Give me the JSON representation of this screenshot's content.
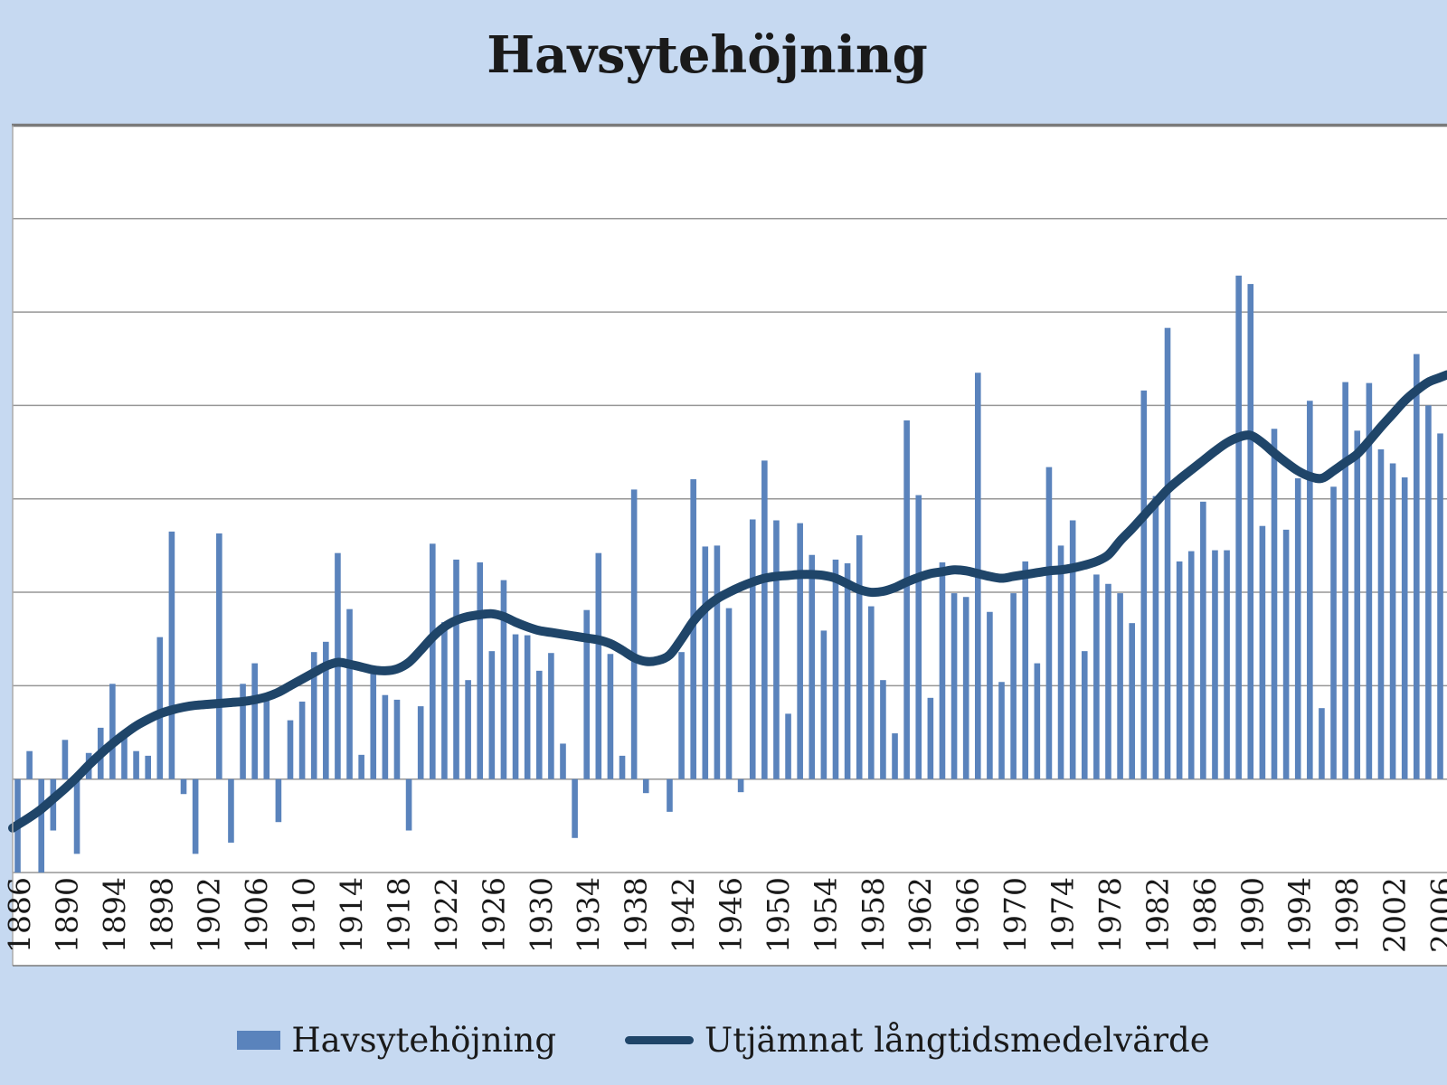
{
  "title": "Havsytehöjning",
  "colors": {
    "background": "#C6D9F1",
    "plot_background": "#FFFFFF",
    "bar": "#5A83BC",
    "line": "#1F4569",
    "gridline": "#969696",
    "frame_top_border": "#7A7A7A",
    "frame_side_border": "#ABABAB",
    "text": "#1A1A1A"
  },
  "legend": {
    "bar_label": "Havsytehöjning",
    "line_label": "Utjämnat långtidsmedelvärde"
  },
  "axis": {
    "x_first_label": "1886",
    "x_last_label": "2006",
    "x_label_interval": 4,
    "y_axis_labels_visible": false,
    "ylim": [
      -1,
      7
    ],
    "gridline_step": 1,
    "grid": "horizontal lines on"
  },
  "chart_data": {
    "type": "bar+line",
    "title": "Havsytehöjning",
    "xlabel": "",
    "ylabel": "",
    "value_units": "gridline units (y-axis tick labels are cropped out of the image; 1 unit = one horizontal gridline spacing, zero line = baseline of bars)",
    "x": [
      1886,
      1887,
      1888,
      1889,
      1890,
      1891,
      1892,
      1893,
      1894,
      1895,
      1896,
      1897,
      1898,
      1899,
      1900,
      1901,
      1902,
      1903,
      1904,
      1905,
      1906,
      1907,
      1908,
      1909,
      1910,
      1911,
      1912,
      1913,
      1914,
      1915,
      1916,
      1917,
      1918,
      1919,
      1920,
      1921,
      1922,
      1923,
      1924,
      1925,
      1926,
      1927,
      1928,
      1929,
      1930,
      1931,
      1932,
      1933,
      1934,
      1935,
      1936,
      1937,
      1938,
      1939,
      1940,
      1941,
      1942,
      1943,
      1944,
      1945,
      1946,
      1947,
      1948,
      1949,
      1950,
      1951,
      1952,
      1953,
      1954,
      1955,
      1956,
      1957,
      1958,
      1959,
      1960,
      1961,
      1962,
      1963,
      1964,
      1965,
      1966,
      1967,
      1968,
      1969,
      1970,
      1971,
      1972,
      1973,
      1974,
      1975,
      1976,
      1977,
      1978,
      1979,
      1980,
      1981,
      1982,
      1983,
      1984,
      1985,
      1986,
      1987,
      1988,
      1989,
      1990,
      1991,
      1992,
      1993,
      1994,
      1995,
      1996,
      1997,
      1998,
      1999,
      2000,
      2001,
      2002,
      2003,
      2004,
      2005,
      2006
    ],
    "series": [
      {
        "name": "Havsytehöjning",
        "type": "bar",
        "values": [
          -1.0,
          0.3,
          -1.0,
          -0.55,
          0.42,
          -0.8,
          0.28,
          0.55,
          1.02,
          0.48,
          0.3,
          0.25,
          1.52,
          2.65,
          -0.16,
          -0.8,
          0,
          2.63,
          -0.68,
          1.02,
          1.24,
          0.84,
          -0.46,
          0.63,
          0.83,
          1.36,
          1.47,
          2.42,
          1.82,
          0.26,
          1.13,
          0.9,
          0.85,
          -0.55,
          0.78,
          2.52,
          1.68,
          2.35,
          1.06,
          2.32,
          1.37,
          2.13,
          1.55,
          1.54,
          1.16,
          1.35,
          0.38,
          -0.63,
          1.81,
          2.42,
          1.34,
          0.25,
          3.1,
          -0.15,
          0,
          -0.35,
          1.36,
          3.21,
          2.49,
          2.5,
          1.83,
          -0.14,
          2.78,
          3.41,
          2.77,
          0.7,
          2.74,
          2.4,
          1.59,
          2.35,
          2.31,
          2.61,
          1.85,
          1.06,
          0.49,
          3.84,
          3.04,
          0.87,
          2.32,
          1.99,
          1.95,
          4.35,
          1.79,
          1.04,
          1.99,
          2.33,
          1.24,
          3.34,
          2.5,
          2.77,
          1.37,
          2.19,
          2.09,
          1.99,
          1.67,
          4.16,
          3.03,
          4.83,
          2.33,
          2.44,
          2.97,
          2.45,
          2.45,
          5.39,
          5.3,
          2.71,
          3.75,
          2.67,
          3.22,
          4.05,
          0.76,
          3.13,
          4.25,
          3.73,
          4.24,
          3.53,
          3.38,
          3.23,
          4.55,
          4.0,
          3.7
        ]
      },
      {
        "name": "Utjämnat långtidsmedelvärde",
        "type": "line",
        "values": [
          -0.49,
          -0.41,
          -0.32,
          -0.21,
          -0.1,
          0.02,
          0.15,
          0.27,
          0.38,
          0.48,
          0.57,
          0.64,
          0.7,
          0.74,
          0.77,
          0.79,
          0.8,
          0.81,
          0.82,
          0.83,
          0.85,
          0.88,
          0.93,
          1.0,
          1.07,
          1.14,
          1.21,
          1.25,
          1.23,
          1.2,
          1.17,
          1.16,
          1.18,
          1.25,
          1.38,
          1.52,
          1.63,
          1.7,
          1.74,
          1.76,
          1.77,
          1.74,
          1.68,
          1.63,
          1.59,
          1.57,
          1.55,
          1.53,
          1.51,
          1.49,
          1.45,
          1.38,
          1.3,
          1.26,
          1.27,
          1.33,
          1.5,
          1.69,
          1.83,
          1.93,
          2.0,
          2.06,
          2.11,
          2.15,
          2.17,
          2.18,
          2.19,
          2.19,
          2.18,
          2.15,
          2.09,
          2.03,
          2.0,
          2.01,
          2.05,
          2.11,
          2.16,
          2.2,
          2.22,
          2.24,
          2.23,
          2.2,
          2.17,
          2.15,
          2.17,
          2.19,
          2.21,
          2.23,
          2.24,
          2.26,
          2.29,
          2.33,
          2.4,
          2.55,
          2.68,
          2.82,
          2.96,
          3.1,
          3.21,
          3.31,
          3.41,
          3.51,
          3.6,
          3.66,
          3.68,
          3.6,
          3.49,
          3.39,
          3.3,
          3.24,
          3.22,
          3.3,
          3.39,
          3.48,
          3.62,
          3.77,
          3.91,
          4.05,
          4.16,
          4.25,
          4.3
        ]
      }
    ],
    "legend_position": "bottom center",
    "x_tick_label_rotation_deg": -90
  }
}
